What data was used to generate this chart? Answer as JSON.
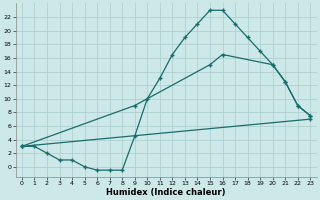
{
  "xlabel": "Humidex (Indice chaleur)",
  "bg_color": "#cce8e8",
  "grid_color": "#aacccc",
  "line_color": "#1a6b6b",
  "xlim": [
    -0.5,
    23.5
  ],
  "ylim": [
    -1.5,
    24
  ],
  "yticks": [
    0,
    2,
    4,
    6,
    8,
    10,
    12,
    14,
    16,
    18,
    20,
    22
  ],
  "xticks": [
    0,
    1,
    2,
    3,
    4,
    5,
    6,
    7,
    8,
    9,
    10,
    11,
    12,
    13,
    14,
    15,
    16,
    17,
    18,
    19,
    20,
    21,
    22,
    23
  ],
  "series1_x": [
    0,
    1,
    2,
    3,
    4,
    5,
    6,
    7,
    8,
    9,
    10,
    11,
    12,
    13,
    14,
    15,
    16,
    17,
    18,
    19,
    20,
    21,
    22,
    23
  ],
  "series1_y": [
    3,
    3,
    2,
    1,
    1,
    0,
    -0.5,
    -0.5,
    -0.5,
    4.5,
    10,
    13,
    16.5,
    19,
    21,
    23,
    23,
    21,
    19,
    17,
    15,
    12.5,
    9,
    7.5
  ],
  "series2_x": [
    0,
    9,
    15,
    16,
    20,
    21,
    22,
    23
  ],
  "series2_y": [
    3,
    9,
    15,
    16.5,
    15,
    12.5,
    9,
    7.5
  ],
  "series3_x": [
    0,
    23
  ],
  "series3_y": [
    3,
    7
  ],
  "marker": "+",
  "markersize": 3.5,
  "linewidth": 0.9
}
